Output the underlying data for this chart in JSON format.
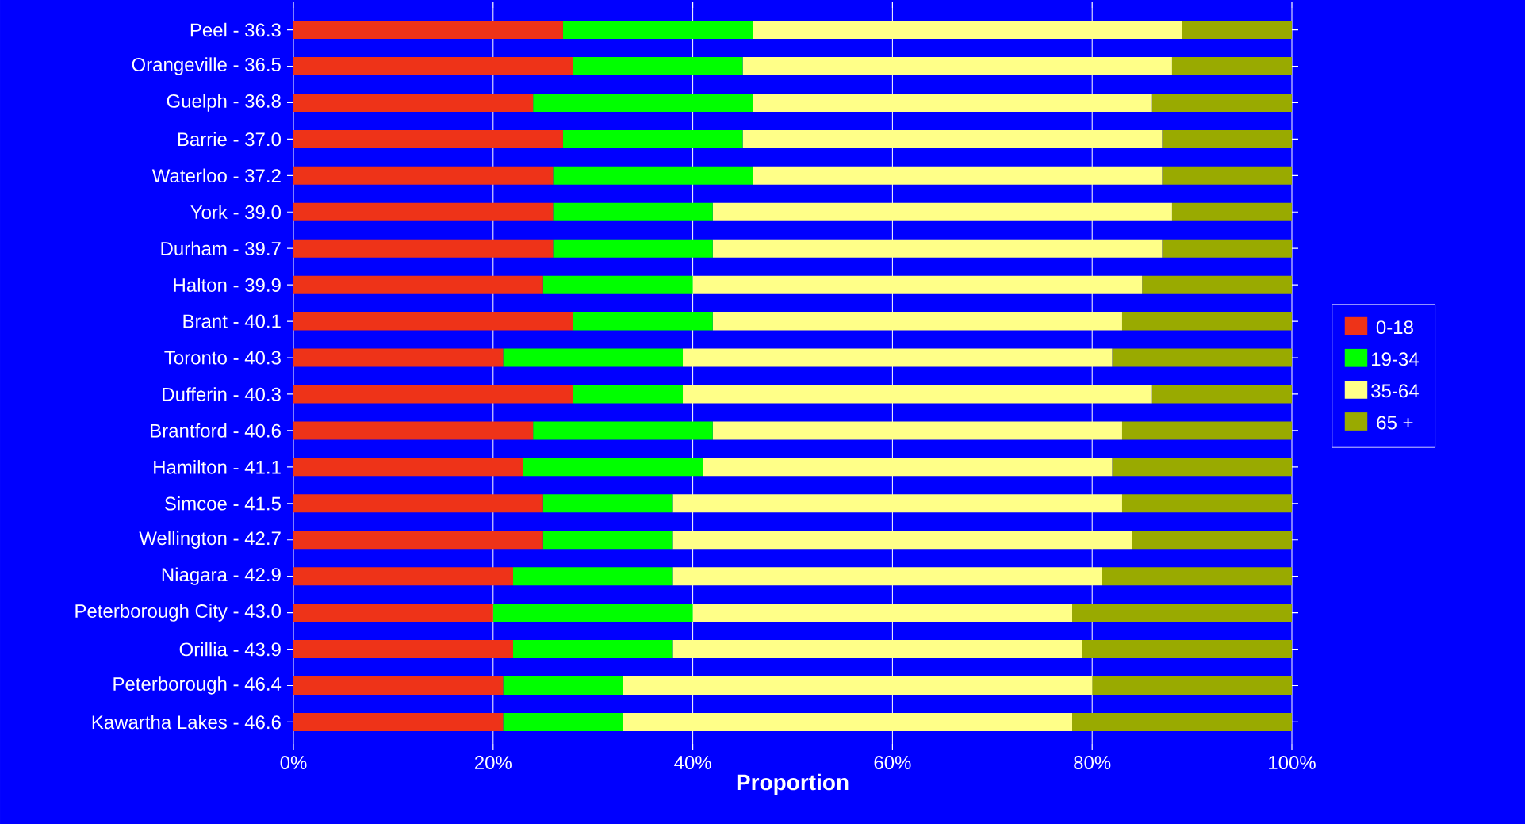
{
  "chart_data": {
    "type": "bar",
    "orientation": "horizontal",
    "stacked": true,
    "xlabel": "Proportion",
    "categories": [
      "Peel - 36.3",
      "Orangeville - 36.5",
      "Guelph - 36.8",
      "Barrie - 37.0",
      "Waterloo - 37.2",
      "York - 39.0",
      "Durham - 39.7",
      "Halton - 39.9",
      "Brant - 40.1",
      "Toronto - 40.3",
      "Dufferin - 40.3",
      "Brantford - 40.6",
      "Hamilton - 41.1",
      "Simcoe - 41.5",
      "Wellington - 42.7",
      "Niagara - 42.9",
      "Peterborough City - 43.0",
      "Orillia - 43.9",
      "Peterborough - 46.4",
      "Kawartha Lakes - 46.6"
    ],
    "series": [
      {
        "name": "0-18",
        "color": "#ee3318",
        "values": [
          27,
          28,
          24,
          27,
          26,
          26,
          26,
          25,
          28,
          21,
          28,
          24,
          23,
          25,
          25,
          22,
          20,
          22,
          21,
          21
        ]
      },
      {
        "name": "19-34",
        "color": "#00ff00",
        "values": [
          19,
          17,
          22,
          18,
          20,
          16,
          16,
          15,
          14,
          18,
          11,
          18,
          18,
          13,
          13,
          16,
          20,
          16,
          12,
          12
        ]
      },
      {
        "name": "35-64",
        "color": "#ffff88",
        "values": [
          43,
          43,
          40,
          42,
          41,
          46,
          45,
          45,
          41,
          43,
          47,
          41,
          41,
          45,
          46,
          43,
          38,
          41,
          47,
          45
        ]
      },
      {
        "name": "65 +",
        "color": "#99aa00",
        "values": [
          11,
          12,
          14,
          13,
          13,
          12,
          13,
          15,
          17,
          18,
          14,
          17,
          18,
          17,
          16,
          19,
          22,
          21,
          20,
          22
        ]
      }
    ],
    "xlim": [
      0,
      100
    ],
    "xticks": [
      {
        "value": 0,
        "label": "0%"
      },
      {
        "value": 20,
        "label": "20%"
      },
      {
        "value": 40,
        "label": "40%"
      },
      {
        "value": 60,
        "label": "60%"
      },
      {
        "value": 80,
        "label": "80%"
      },
      {
        "value": 100,
        "label": "100%"
      }
    ],
    "grid": "x",
    "legend": "right"
  }
}
